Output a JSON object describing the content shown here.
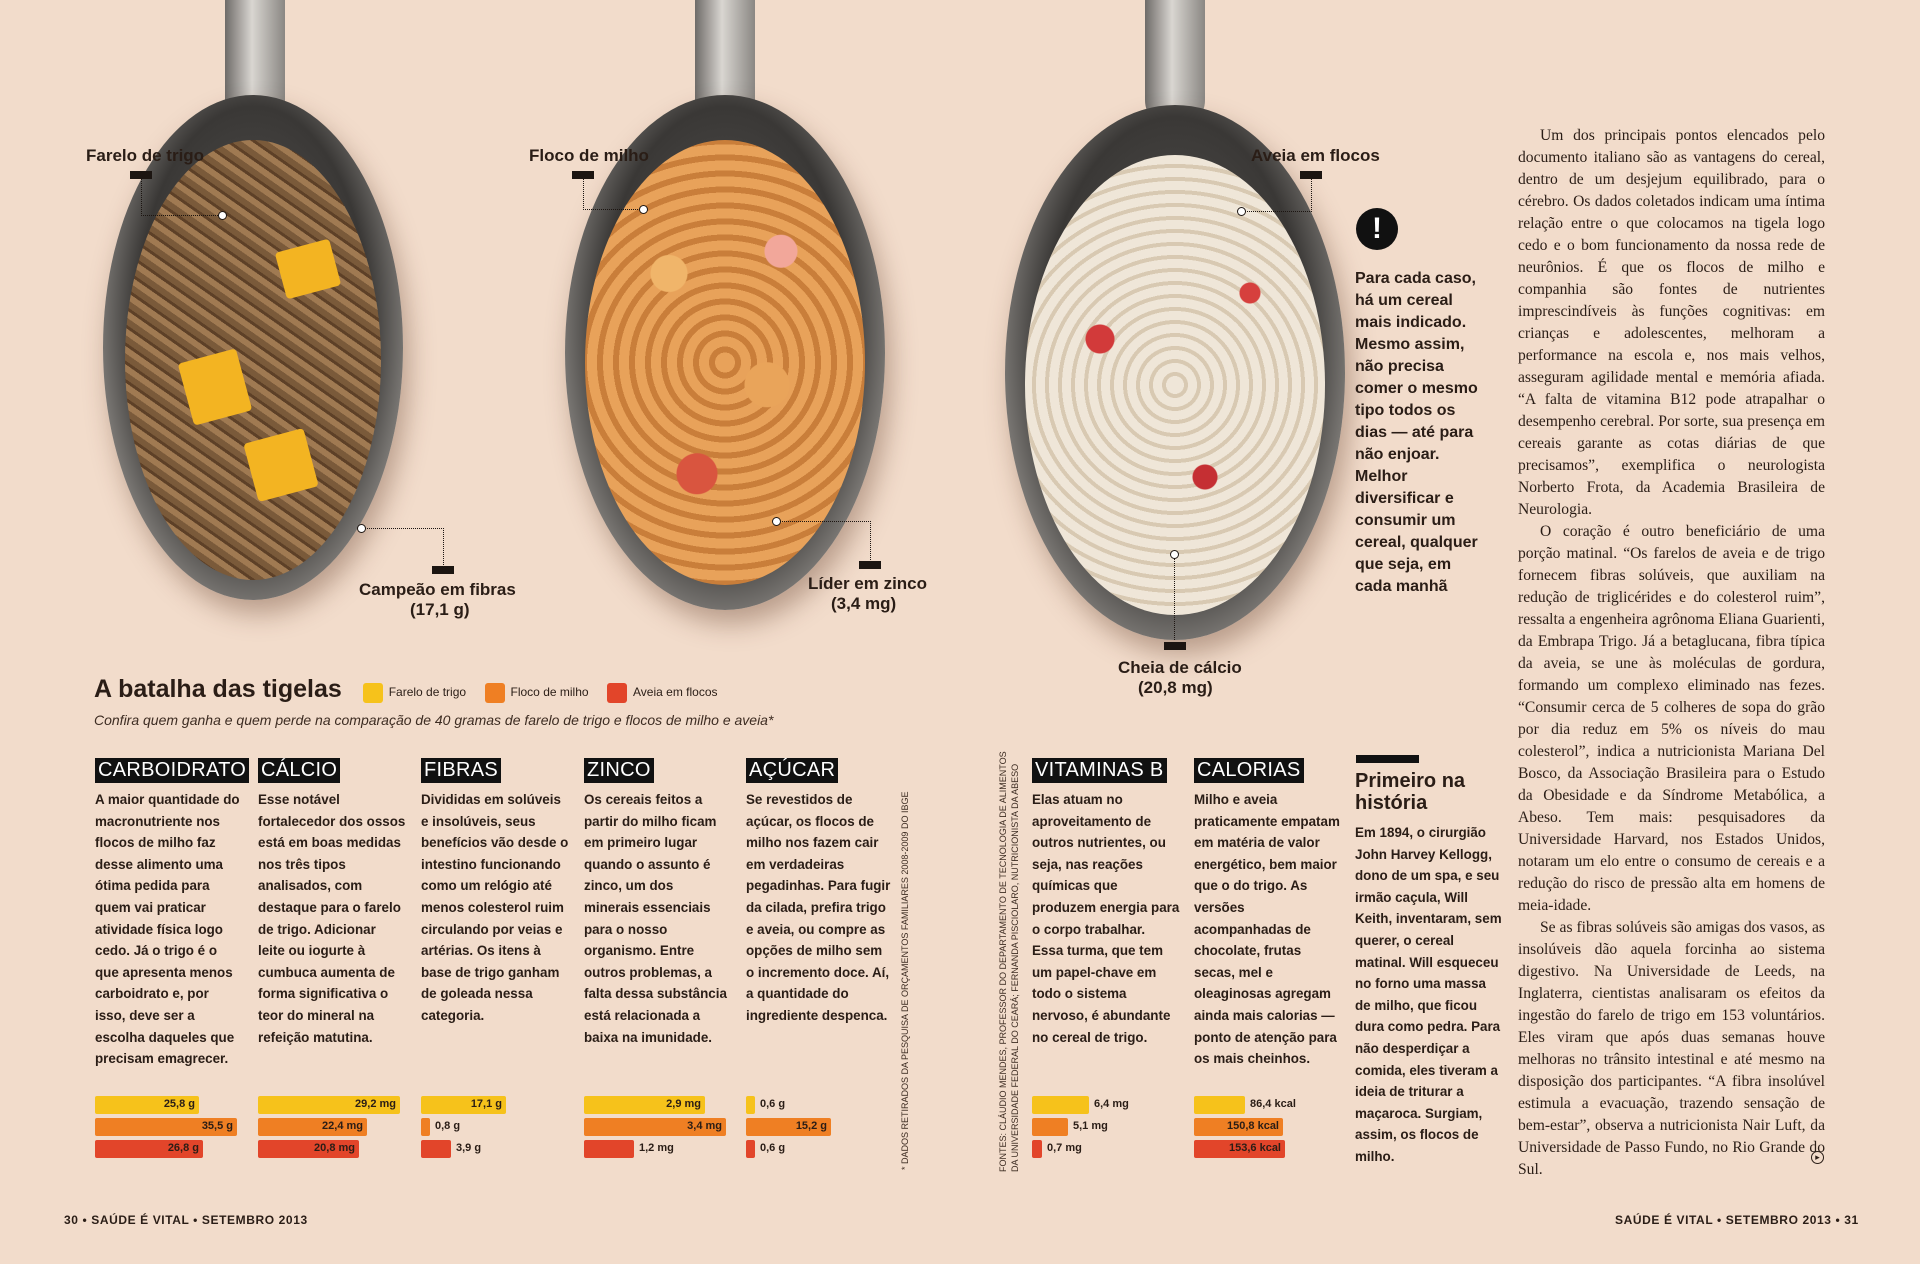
{
  "spoons": {
    "bran": {
      "label": "Farelo de trigo",
      "callout_title": "Campeão em fibras",
      "callout_value": "(17,1 g)"
    },
    "corn": {
      "label": "Floco de milho",
      "callout_title": "Líder em zinco",
      "callout_value": "(3,4 mg)"
    },
    "oat": {
      "label": "Aveia em flocos",
      "callout_title": "Cheia de cálcio",
      "callout_value": "(20,8 mg)"
    }
  },
  "tip": {
    "icon": "!",
    "text": "Para cada caso, há um cereal mais indicado. Mesmo assim, não precisa comer o mesmo tipo todos os dias — até para não enjoar. Melhor diversificar e consumir um cereal, qualquer que seja, em cada manhã"
  },
  "section": {
    "title": "A batalha das tigelas",
    "legend": [
      {
        "label": "Farelo de trigo",
        "color": "#f6c21b"
      },
      {
        "label": "Floco de milho",
        "color": "#ef7f23"
      },
      {
        "label": "Aveia em flocos",
        "color": "#e2452a"
      }
    ],
    "subtitle": "Confira quem ganha e quem perde na comparação de 40 gramas de farelo de trigo e flocos de milho e aveia*"
  },
  "columns": [
    {
      "title": "CARBOIDRATO",
      "text": "A maior quantidade do macronutriente nos flocos de milho faz desse alimento uma ótima pedida para quem vai praticar atividade física logo cedo. Já o trigo é o que apresenta menos carboidrato e, por isso, deve ser a escolha daqueles que precisam emagrecer.",
      "bars": [
        {
          "value": "25,8 g",
          "ratio": 0.73
        },
        {
          "value": "35,5 g",
          "ratio": 1.0
        },
        {
          "value": "26,8 g",
          "ratio": 0.76
        }
      ]
    },
    {
      "title": "CÁLCIO",
      "text": "Esse notável fortalecedor dos ossos está em boas medidas nos três tipos analisados, com destaque para o farelo de trigo. Adicionar leite ou iogurte à cumbuca aumenta de forma significativa o teor do mineral na refeição matutina.",
      "bars": [
        {
          "value": "29,2 mg",
          "ratio": 1.0
        },
        {
          "value": "22,4 mg",
          "ratio": 0.77
        },
        {
          "value": "20,8 mg",
          "ratio": 0.71
        }
      ]
    },
    {
      "title": "FIBRAS",
      "text": "Divididas em solúveis e insolúveis, seus benefícios vão desde o intestino funcionando como um relógio até menos colesterol ruim circulando por veias e artérias. Os itens à base de trigo ganham de goleada nessa categoria.",
      "bars": [
        {
          "value": "17,1 g",
          "ratio": 0.6
        },
        {
          "value": "0,8 g",
          "ratio": 0.06
        },
        {
          "value": "3,9 g",
          "ratio": 0.21
        }
      ]
    },
    {
      "title": "ZINCO",
      "text": "Os cereais feitos a partir do milho ficam em primeiro lugar quando o assunto é zinco, um dos minerais essenciais para o nosso organismo. Entre outros problemas, a falta dessa substância está relacionada a baixa na imunidade.",
      "bars": [
        {
          "value": "2,9 mg",
          "ratio": 0.85
        },
        {
          "value": "3,4 mg",
          "ratio": 1.0
        },
        {
          "value": "1,2 mg",
          "ratio": 0.35
        }
      ]
    },
    {
      "title": "AÇÚCAR",
      "text": "Se revestidos de açúcar, os flocos de milho nos fazem cair em verdadeiras pegadinhas. Para fugir da cilada, prefira trigo e aveia, ou compre as opções de milho sem o incremento doce. Aí, a quantidade do ingrediente despenca.",
      "bars": [
        {
          "value": "0,6 g",
          "ratio": 0.06
        },
        {
          "value": "15,2 g",
          "ratio": 0.6
        },
        {
          "value": "0,6 g",
          "ratio": 0.06
        }
      ]
    },
    {
      "title": "VITAMINAS B",
      "text": "Elas atuam no aproveitamento de outros nutrientes, ou seja, nas reações químicas que produzem energia para o corpo trabalhar. Essa turma, que tem um papel-chave em todo o sistema nervoso, é abundante no cereal de trigo.",
      "bars": [
        {
          "value": "6,4 mg",
          "ratio": 0.4
        },
        {
          "value": "5,1 mg",
          "ratio": 0.25
        },
        {
          "value": "0,7 mg",
          "ratio": 0.07
        }
      ]
    },
    {
      "title": "CALORIAS",
      "text": "Milho e aveia praticamente empatam em matéria de valor energético, bem maior que o do trigo. As versões acompanhadas de chocolate, frutas secas, mel e oleaginosas agregam ainda mais calorias — ponto de atenção para os mais cheinhos.",
      "bars": [
        {
          "value": "86,4 kcal",
          "ratio": 0.36
        },
        {
          "value": "150,8 kcal",
          "ratio": 0.63
        },
        {
          "value": "153,6 kcal",
          "ratio": 0.64
        }
      ]
    }
  ],
  "note_dados": "* DADOS RETIRADOS DA PESQUISA DE ORÇAMENTOS FAMILIARES 2008-2009 DO IBGE",
  "fontes": {
    "line1": "FONTES: CLÁUDIO MENDES, PROFESSOR DO DEPARTAMENTO DE TECNOLOGIA DE ALIMENTOS",
    "line2": "DA UNIVERSIDADE FEDERAL DO CEARÁ; FERNANDA PISCIOLARO, NUTRICIONISTA DA ABESO"
  },
  "history": {
    "title": "Primeiro na história",
    "text": "Em 1894, o cirurgião John Harvey Kellogg, dono de um spa, e seu irmão caçula, Will Keith, inventaram, sem querer, o cereal matinal. Will esqueceu no forno uma massa de milho, que ficou dura como pedra. Para não desperdiçar a comida, eles tiveram a ideia de triturar a maçaroca. Surgiam, assim, os flocos de milho."
  },
  "body": [
    "Um dos principais pontos elencados pelo documento italiano são as vantagens do cereal, dentro de um desjejum equilibrado, para o cérebro. Os dados coletados indicam uma íntima relação entre o que colocamos na tigela logo cedo e o bom funcionamento da nossa rede de neurônios. É que os flocos de milho e companhia são fontes de nutrientes imprescindíveis às funções cognitivas: em crianças e adolescentes, melhoram a performance na escola e, nos mais velhos, asseguram agilidade mental e memória afiada. “A falta de vitamina B12 pode atrapalhar o desempenho cerebral. Por sorte, sua presença em cereais garante as cotas diárias de que precisamos”, exemplifica o neurologista Norberto Frota, da Academia Brasileira de Neurologia.",
    "O coração é outro beneficiário de uma porção matinal. “Os farelos de aveia e de trigo fornecem fibras solúveis, que auxiliam na redução de triglicérides e do colesterol ruim”, ressalta a engenheira agrônoma Eliana Guarienti, da Embrapa Trigo. Já a betaglucana, fibra típica da aveia, se une às moléculas de gordura, formando um complexo eliminado nas fezes. “Consumir cerca de 5 colheres de sopa do grão por dia reduz em 5% os níveis do mau colesterol”, indica a nutricionista Mariana Del Bosco, da Associação Brasileira para o Estudo da Obesidade e da Síndrome Metabólica, a Abeso. Tem mais: pesquisadores da Universidade Harvard, nos Estados Unidos, notaram um elo entre o consumo de cereais e a redução do risco de pressão alta em homens de meia-idade.",
    "Se as fibras solúveis são amigas dos vasos, as insolúveis dão aquela forcinha ao sistema digestivo. Na Universidade de Leeds, na Inglaterra, cientistas analisaram os efeitos da ingestão do farelo de trigo em 153 voluntários. Eles viram que após duas semanas houve melhoras no trânsito intestinal e até mesmo na disposição dos participantes. “A fibra insolúvel estimula a evacuação, trazendo sensação de bem-estar”, observa a nutricionista Nair Luft, da Universidade de Passo Fundo, no Rio Grande do Sul."
  ],
  "continue_icon": "arrow-right-circle-icon",
  "footer": {
    "left": "30 • SAÚDE É VITAL • SETEMBRO 2013",
    "right": "SAÚDE É VITAL • SETEMBRO 2013 • 31"
  }
}
